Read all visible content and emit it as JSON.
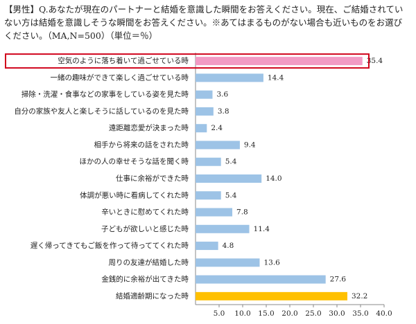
{
  "chart_data": {
    "type": "hbar",
    "title": "【男性】Q.あなたが現在のパートナーと結婚を意識した瞬間をお答えください。現在、ご結婚されていない方は結婚を意識しそうな瞬間をお答えください。※あてはまるものがない場合も近いものをお選びください。（MA,N=500）（単位＝％）",
    "categories": [
      "空気のように落ち着いて過ごせている時",
      "一緒の趣味ができて楽しく過ごせている時",
      "掃除・洗濯・食事などの家事をしている姿を見た時",
      "自分の家族や友人と楽しそうに話しているのを見た時",
      "遠距離恋愛が決まった時",
      "相手から将来の話をされた時",
      "ほかの人の幸せそうな話を聞く時",
      "仕事に余裕ができた時",
      "体調が悪い時に看病してくれた時",
      "辛いときに慰めてくれた時",
      "子どもが欲しいと感じた時",
      "遅く帰ってきてもご飯を作って待っててくれた時",
      "周りの友達が結婚した時",
      "金銭的に余裕が出てきた時",
      "結婚適齢期になった時"
    ],
    "values": [
      35.4,
      14.4,
      3.6,
      3.8,
      2.4,
      9.4,
      5.4,
      14.0,
      5.4,
      7.8,
      11.4,
      4.8,
      13.6,
      27.6,
      32.2
    ],
    "value_labels": [
      "35.4",
      "14.4",
      "3.6",
      "3.8",
      "2.4",
      "9.4",
      "5.4",
      "14.0",
      "5.4",
      "7.8",
      "11.4",
      "4.8",
      "13.6",
      "27.6",
      "32.2"
    ],
    "colors": [
      "#f29ac4",
      "#9dc3e6",
      "#9dc3e6",
      "#9dc3e6",
      "#9dc3e6",
      "#9dc3e6",
      "#9dc3e6",
      "#9dc3e6",
      "#9dc3e6",
      "#9dc3e6",
      "#9dc3e6",
      "#9dc3e6",
      "#9dc3e6",
      "#9dc3e6",
      "#ffc000"
    ],
    "highlight_index": 0,
    "highlight_color": "#d0021b",
    "xlim": [
      0,
      40
    ],
    "xticks": [
      {
        "value": 5,
        "label": "5.0"
      },
      {
        "value": 10,
        "label": "10.0"
      },
      {
        "value": 15,
        "label": "15.0"
      },
      {
        "value": 20,
        "label": "20.0"
      },
      {
        "value": 25,
        "label": "25.0"
      },
      {
        "value": 30,
        "label": "30.0"
      },
      {
        "value": 35,
        "label": "35.0"
      },
      {
        "value": 40,
        "label": "40.0"
      }
    ]
  }
}
